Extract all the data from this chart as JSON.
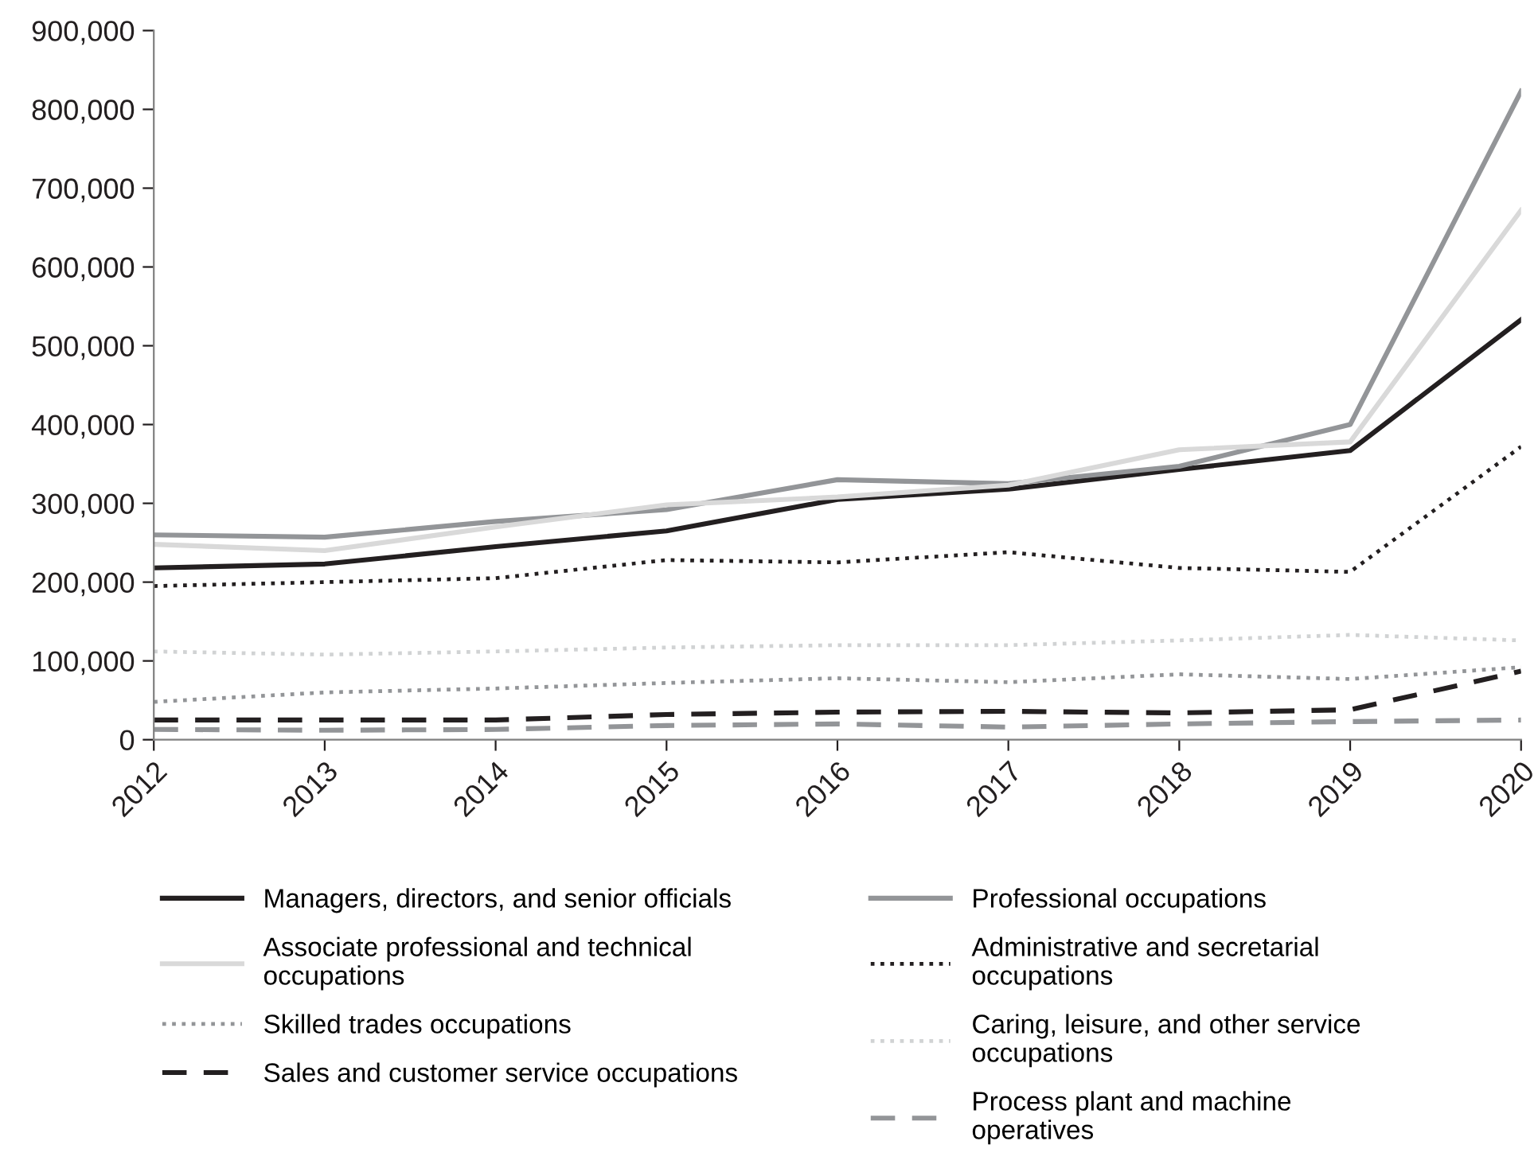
{
  "chart_data": {
    "type": "line",
    "x": [
      2012,
      2013,
      2014,
      2015,
      2016,
      2017,
      2018,
      2019,
      2020
    ],
    "xlim": [
      2012,
      2020
    ],
    "xticks": [
      2012,
      2013,
      2014,
      2015,
      2016,
      2017,
      2018,
      2019,
      2020
    ],
    "ylim": [
      0,
      900000
    ],
    "yticks": [
      {
        "value": 0,
        "label": "0"
      },
      {
        "value": 100000,
        "label": "100,000"
      },
      {
        "value": 200000,
        "label": "200,000"
      },
      {
        "value": 300000,
        "label": "300,000"
      },
      {
        "value": 400000,
        "label": "400,000"
      },
      {
        "value": 500000,
        "label": "500,000"
      },
      {
        "value": 600000,
        "label": "600,000"
      },
      {
        "value": 700000,
        "label": "700,000"
      },
      {
        "value": 800000,
        "label": "800,000"
      },
      {
        "value": 900000,
        "label": "900,000"
      }
    ],
    "grid": false,
    "legend": "bottom",
    "marker": "none",
    "series": [
      {
        "name": "Managers, directors, and senior officials",
        "color": "#231f20",
        "line_style": "solid",
        "values": [
          218000,
          223000,
          245000,
          265000,
          305000,
          318000,
          343000,
          367000,
          533000
        ]
      },
      {
        "name": "Professional occupations",
        "color": "#939598",
        "line_style": "solid",
        "values": [
          260000,
          257000,
          277000,
          292000,
          330000,
          325000,
          347000,
          400000,
          823000
        ]
      },
      {
        "name": "Associate professional and technical\noccupations",
        "color": "#d9d9d9",
        "line_style": "solid",
        "values": [
          248000,
          240000,
          270000,
          298000,
          308000,
          323000,
          368000,
          378000,
          672000
        ]
      },
      {
        "name": "Administrative and secretarial\noccupations",
        "color": "#231f20",
        "line_style": "dotted",
        "values": [
          195000,
          200000,
          205000,
          228000,
          225000,
          238000,
          218000,
          213000,
          372000
        ]
      },
      {
        "name": "Skilled trades occupations",
        "color": "#939598",
        "line_style": "dotted",
        "values": [
          48000,
          60000,
          65000,
          72000,
          78000,
          73000,
          83000,
          77000,
          92000
        ]
      },
      {
        "name": "Caring, leisure, and other service\noccupations",
        "color": "#d1d3d4",
        "line_style": "dotted",
        "values": [
          112000,
          108000,
          112000,
          117000,
          120000,
          120000,
          126000,
          133000,
          126000
        ]
      },
      {
        "name": "Sales and customer service occupations",
        "color": "#231f20",
        "line_style": "dashed",
        "values": [
          25000,
          25000,
          25000,
          32000,
          35000,
          36000,
          34000,
          38000,
          87000
        ]
      },
      {
        "name": "Process plant and machine\noperatives",
        "color": "#939598",
        "line_style": "dashed",
        "values": [
          13000,
          12000,
          13000,
          18000,
          20000,
          16000,
          20000,
          23000,
          25000
        ]
      }
    ]
  }
}
